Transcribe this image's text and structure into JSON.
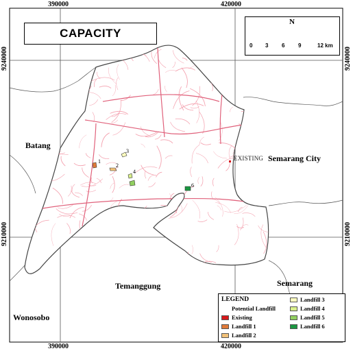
{
  "map": {
    "title": "CAPACITY",
    "coords_top": [
      "390000",
      "420000"
    ],
    "coords_bottom": [
      "390000",
      "420000"
    ],
    "coords_left": [
      "9240000",
      "9210000"
    ],
    "coords_right": [
      "9240000",
      "9210000"
    ],
    "places": {
      "batang": "Batang",
      "semarang_city": "Semarang City",
      "temanggung": "Temanggung",
      "semarang": "Semarang",
      "wonosobo": "Wonosobo"
    },
    "existing_label": "EXISTING",
    "site_numbers": [
      "1",
      "2",
      "3",
      "4",
      "6"
    ],
    "north_letter": "N",
    "scale": {
      "ticks": [
        "0",
        "3",
        "6",
        "9",
        "12 km"
      ]
    }
  },
  "legend": {
    "title": "LEGEND",
    "items": [
      {
        "label": "Potential Landfill",
        "color": "#cccccc",
        "shape": "circle"
      },
      {
        "label": "Existing",
        "color": "#d7191c"
      },
      {
        "label": "Landfill 1",
        "color": "#e07b39"
      },
      {
        "label": "Landfill 2",
        "color": "#f2c27a"
      },
      {
        "label": "Landfill 3",
        "color": "#ffffbf"
      },
      {
        "label": "Landfill 4",
        "color": "#d9ef8b"
      },
      {
        "label": "Landfill 5",
        "color": "#91cf60"
      },
      {
        "label": "Landfill 6",
        "color": "#1a9641"
      }
    ]
  },
  "colors": {
    "roads": "#f4a0ae",
    "boundary": "#444444",
    "grid": "#555555"
  }
}
